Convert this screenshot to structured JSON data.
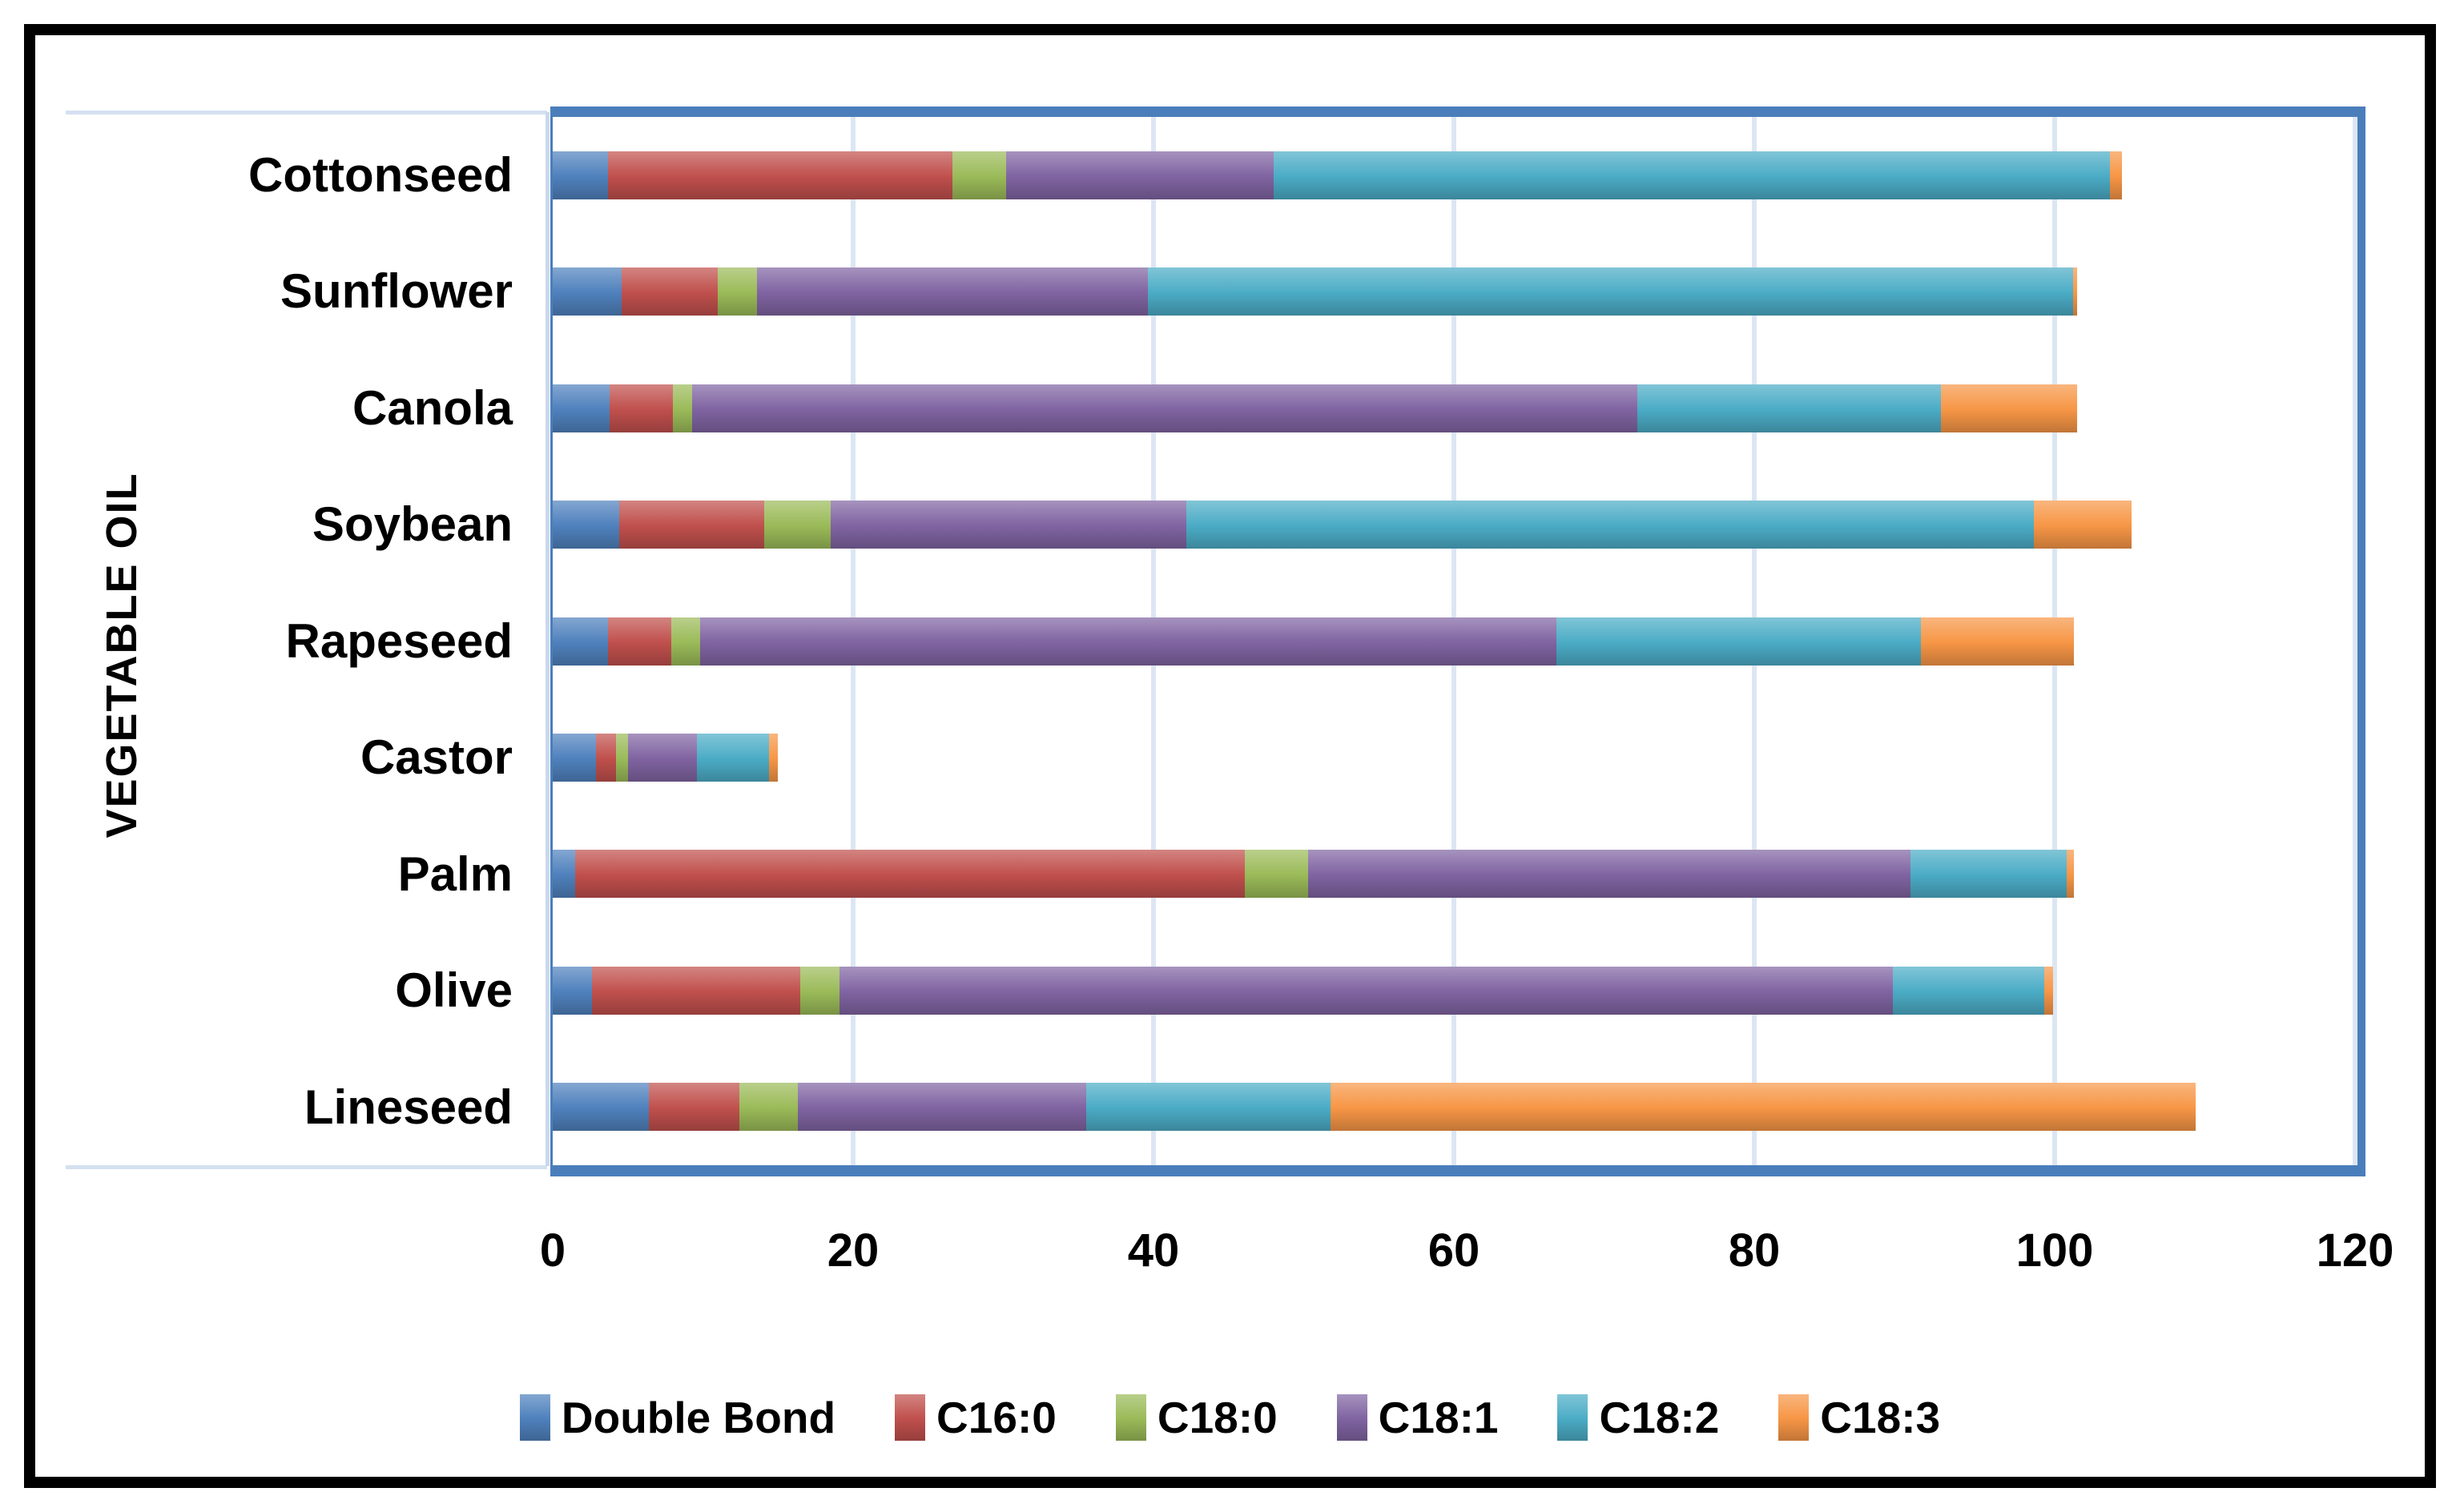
{
  "chart_data": {
    "type": "bar",
    "orientation": "horizontal",
    "stacked": true,
    "title": "",
    "xlabel": "",
    "ylabel": "VEGETABLE OIL",
    "xlim": [
      0,
      120
    ],
    "xticks": [
      0,
      20,
      40,
      60,
      80,
      100,
      120
    ],
    "grid": "vertical-light-blue",
    "legend_position": "bottom",
    "categories": [
      "Cottonseed",
      "Sunflower",
      "Canola",
      "Soybean",
      "Rapeseed",
      "Castor",
      "Palm",
      "Olive",
      "Lineseed"
    ],
    "series": [
      {
        "name": "Double Bond",
        "color": "#4F81BD",
        "values": [
          3.7,
          4.6,
          3.8,
          4.4,
          3.7,
          2.9,
          1.5,
          2.6,
          6.4
        ]
      },
      {
        "name": "C16:0",
        "color": "#C0504D",
        "values": [
          22.9,
          6.4,
          4.2,
          9.7,
          4.2,
          1.3,
          44.6,
          13.9,
          6.0
        ]
      },
      {
        "name": "C18:0",
        "color": "#9BBB59",
        "values": [
          3.6,
          2.6,
          1.3,
          4.4,
          1.9,
          0.8,
          4.2,
          2.6,
          3.9
        ]
      },
      {
        "name": "C18:1",
        "color": "#8064A2",
        "values": [
          17.8,
          26.0,
          62.9,
          23.7,
          57.0,
          4.6,
          40.1,
          70.1,
          19.2
        ]
      },
      {
        "name": "C18:2",
        "color": "#4BACC6",
        "values": [
          55.7,
          61.6,
          20.2,
          56.4,
          24.3,
          4.8,
          10.4,
          10.1,
          16.3
        ]
      },
      {
        "name": "C18:3",
        "color": "#F79646",
        "values": [
          0.8,
          0.3,
          9.1,
          6.5,
          10.2,
          0.6,
          0.5,
          0.6,
          57.6
        ]
      }
    ]
  },
  "colors": {
    "plot_border": "#4a7ebb",
    "gridline": "#dce6f3",
    "axis_light_line": "#c9d9ec",
    "outer_frame": "#000000",
    "background": "#ffffff",
    "text": "#000000"
  }
}
